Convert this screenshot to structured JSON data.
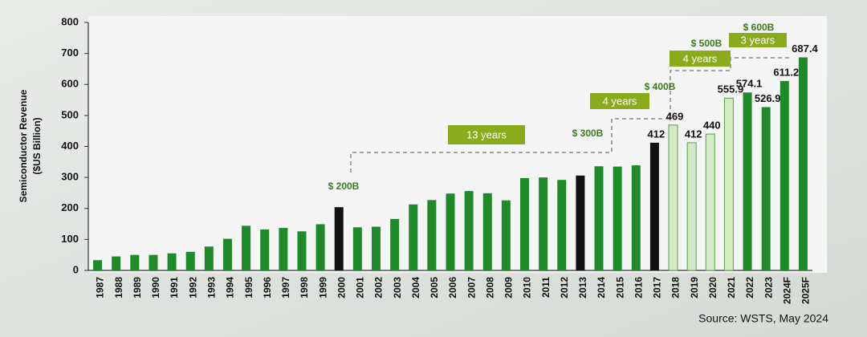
{
  "chart_data": {
    "type": "bar",
    "y_title": "Semiconductor Revenue",
    "y_subtitle": "($US Billion)",
    "source": "Source: WSTS, May 2024",
    "categories": [
      "1987",
      "1988",
      "1989",
      "1990",
      "1991",
      "1992",
      "1993",
      "1994",
      "1995",
      "1996",
      "1997",
      "1998",
      "1999",
      "2000",
      "2001",
      "2002",
      "2003",
      "2004",
      "2005",
      "2006",
      "2007",
      "2008",
      "2009",
      "2010",
      "2011",
      "2012",
      "2013",
      "2014",
      "2015",
      "2016",
      "2017",
      "2018",
      "2019",
      "2020",
      "2021",
      "2022",
      "2023",
      "2024F",
      "2025F"
    ],
    "values": [
      33,
      45,
      50,
      50,
      55,
      60,
      77,
      102,
      144,
      132,
      137,
      126,
      149,
      204,
      139,
      141,
      166,
      213,
      227,
      248,
      256,
      249,
      226,
      298,
      300,
      292,
      306,
      336,
      335,
      339,
      412,
      469,
      412,
      440,
      555.9,
      574.1,
      526.9,
      611.2,
      687.4
    ],
    "value_labels": [
      null,
      null,
      null,
      null,
      null,
      null,
      null,
      null,
      null,
      null,
      null,
      null,
      null,
      null,
      null,
      null,
      null,
      null,
      null,
      null,
      null,
      null,
      null,
      null,
      null,
      null,
      null,
      null,
      null,
      null,
      "412",
      "469",
      "412",
      "440",
      "555.9",
      "574.1",
      "526.9",
      "611.2",
      "687.4"
    ],
    "colors": [
      "#1f8a2a",
      "#1f8a2a",
      "#1f8a2a",
      "#1f8a2a",
      "#1f8a2a",
      "#1f8a2a",
      "#1f8a2a",
      "#1f8a2a",
      "#1f8a2a",
      "#1f8a2a",
      "#1f8a2a",
      "#1f8a2a",
      "#1f8a2a",
      "#111111",
      "#1f8a2a",
      "#1f8a2a",
      "#1f8a2a",
      "#1f8a2a",
      "#1f8a2a",
      "#1f8a2a",
      "#1f8a2a",
      "#1f8a2a",
      "#1f8a2a",
      "#1f8a2a",
      "#1f8a2a",
      "#1f8a2a",
      "#111111",
      "#1f8a2a",
      "#1f8a2a",
      "#1f8a2a",
      "#111111",
      "#d4eac4",
      "#d4eac4",
      "#d4eac4",
      "#d4eac4",
      "#1f8a2a",
      "#1f8a2a",
      "#1f8a2a",
      "#1f8a2a"
    ],
    "ylim": [
      0,
      800
    ],
    "yticks": [
      0,
      100,
      200,
      300,
      400,
      500,
      600,
      700,
      800
    ],
    "milestones": [
      "$ 200B",
      "$ 300B",
      "$ 400B",
      "$ 500B",
      "$ 600B"
    ],
    "spans": [
      "13 years",
      "4 years",
      "4 years",
      "3 years"
    ]
  }
}
